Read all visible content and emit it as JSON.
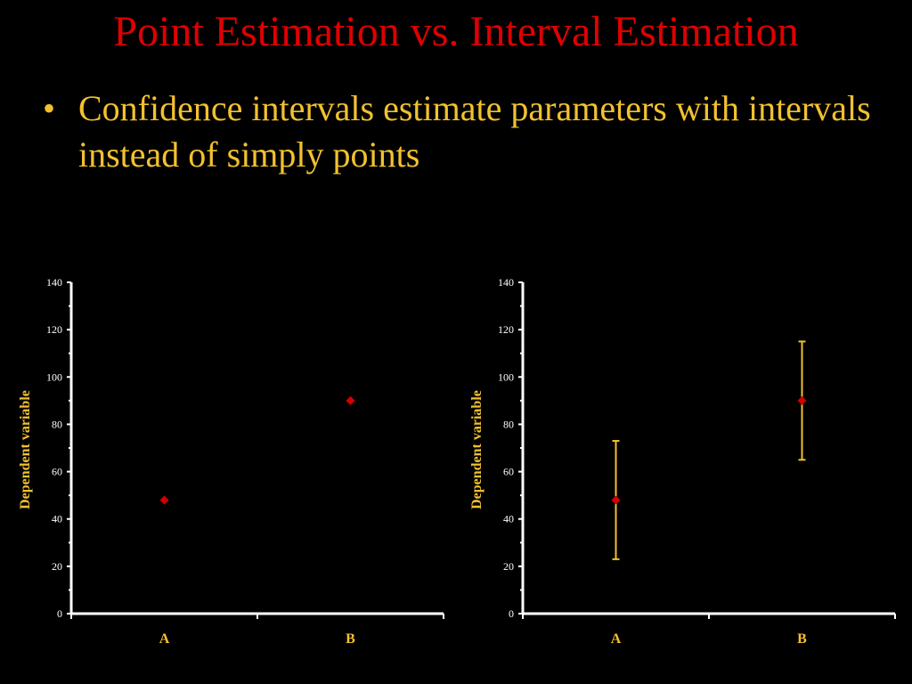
{
  "slide": {
    "title": "Point Estimation vs. Interval Estimation",
    "bullets": [
      {
        "marker": "•",
        "text": "Confidence intervals estimate parameters with intervals instead of simply points"
      }
    ]
  },
  "colors": {
    "background": "#000000",
    "title": "#e00000",
    "bullet_text": "#f2c12e",
    "axis": "#ffffff",
    "axis_label": "#f2c12e",
    "point": "#d40000",
    "error_bar": "#f2c12e"
  },
  "chart_data": [
    {
      "type": "scatter",
      "title": "",
      "xlabel": "",
      "ylabel": "Dependent variable",
      "categories": [
        "A",
        "B"
      ],
      "values": [
        48,
        90
      ],
      "ylim": [
        0,
        140
      ],
      "yticks": [
        0,
        20,
        40,
        60,
        80,
        100,
        120,
        140
      ],
      "grid": false,
      "legend": "none",
      "error_bars": false
    },
    {
      "type": "scatter",
      "title": "",
      "xlabel": "",
      "ylabel": "Dependent variable",
      "categories": [
        "A",
        "B"
      ],
      "values": [
        48,
        90
      ],
      "error_low": [
        23,
        65
      ],
      "error_high": [
        73,
        115
      ],
      "ylim": [
        0,
        140
      ],
      "yticks": [
        0,
        20,
        40,
        60,
        80,
        100,
        120,
        140
      ],
      "grid": false,
      "legend": "none",
      "error_bars": true
    }
  ]
}
